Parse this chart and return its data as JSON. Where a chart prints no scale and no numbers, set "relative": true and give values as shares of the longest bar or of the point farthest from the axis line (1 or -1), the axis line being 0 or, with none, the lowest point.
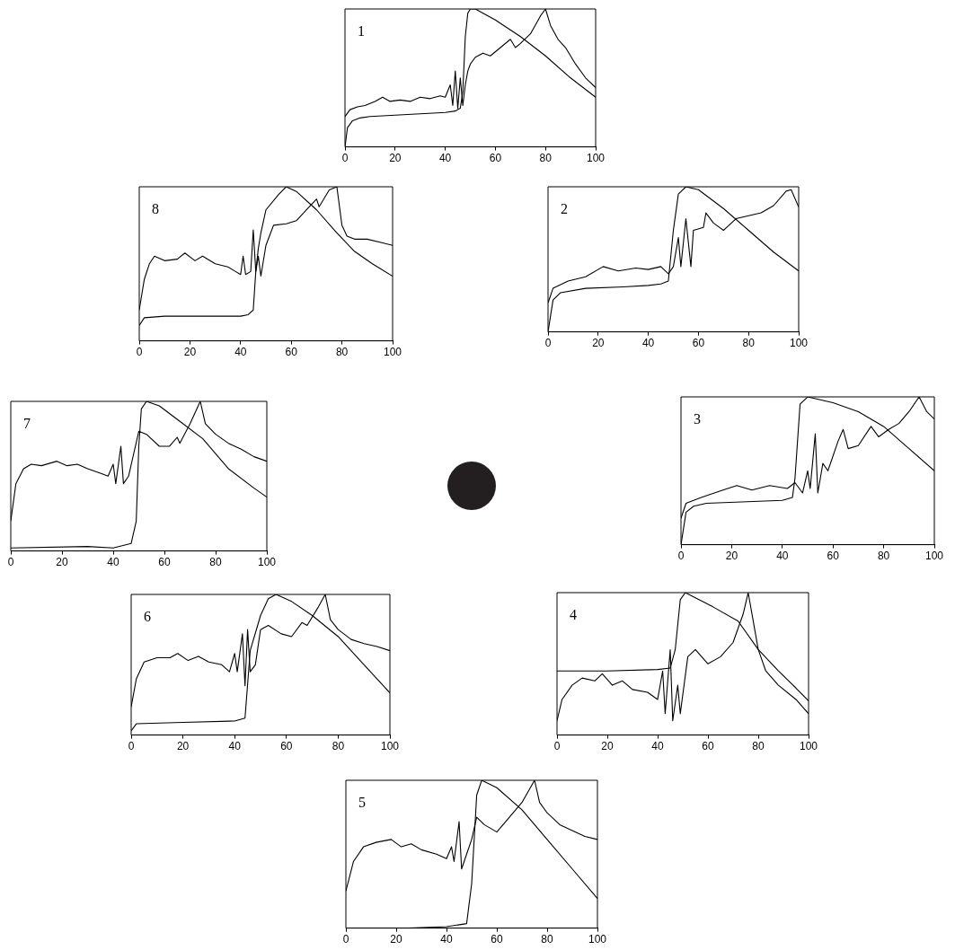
{
  "chart_data": [
    {
      "type": "line",
      "relative": true,
      "annotations": [
        "1"
      ],
      "xlim": [
        0,
        100
      ],
      "xticks": [
        0,
        20,
        40,
        60,
        80,
        100
      ],
      "series": [
        {
          "color": "#000000",
          "x": [
            0,
            1,
            3,
            6,
            10,
            20,
            30,
            40,
            44,
            46,
            47,
            48,
            49,
            50,
            52,
            60,
            70,
            80,
            90,
            100
          ],
          "values": [
            0,
            0.14,
            0.19,
            0.21,
            0.22,
            0.23,
            0.24,
            0.25,
            0.26,
            0.28,
            0.4,
            0.8,
            0.97,
            1,
            1,
            0.92,
            0.8,
            0.66,
            0.5,
            0.36
          ]
        },
        {
          "color": "#000000",
          "x": [
            0,
            2,
            5,
            8,
            12,
            15,
            18,
            22,
            26,
            30,
            34,
            38,
            40,
            42,
            43,
            44,
            45,
            46,
            47,
            48,
            49,
            50,
            52,
            55,
            58,
            62,
            66,
            68,
            70,
            74,
            78,
            80,
            82,
            85,
            88,
            92,
            96,
            100
          ],
          "values": [
            0.22,
            0.27,
            0.29,
            0.3,
            0.33,
            0.36,
            0.33,
            0.34,
            0.33,
            0.36,
            0.35,
            0.37,
            0.36,
            0.45,
            0.3,
            0.55,
            0.28,
            0.5,
            0.3,
            0.45,
            0.55,
            0.6,
            0.65,
            0.68,
            0.66,
            0.72,
            0.78,
            0.72,
            0.75,
            0.82,
            0.95,
            1,
            0.88,
            0.78,
            0.72,
            0.6,
            0.5,
            0.43
          ]
        }
      ]
    },
    {
      "type": "line",
      "relative": true,
      "annotations": [
        "8"
      ],
      "xlim": [
        0,
        100
      ],
      "xticks": [
        0,
        20,
        40,
        60,
        80,
        100
      ],
      "series": [
        {
          "color": "#000000",
          "x": [
            0,
            2,
            10,
            20,
            30,
            40,
            43,
            45,
            46,
            47,
            48,
            50,
            55,
            58,
            62,
            70,
            78,
            85,
            92,
            100
          ],
          "values": [
            0.1,
            0.15,
            0.16,
            0.16,
            0.16,
            0.16,
            0.17,
            0.2,
            0.45,
            0.6,
            0.7,
            0.85,
            0.95,
            1,
            0.97,
            0.85,
            0.7,
            0.58,
            0.5,
            0.42
          ]
        },
        {
          "color": "#000000",
          "x": [
            0,
            2,
            4,
            6,
            10,
            15,
            18,
            22,
            25,
            30,
            35,
            38,
            40,
            41,
            42,
            44,
            45,
            46,
            47,
            48,
            50,
            53,
            58,
            62,
            66,
            70,
            71,
            75,
            78,
            80,
            82,
            85,
            90,
            95,
            100
          ],
          "values": [
            0.2,
            0.4,
            0.5,
            0.55,
            0.52,
            0.53,
            0.57,
            0.52,
            0.55,
            0.5,
            0.48,
            0.45,
            0.43,
            0.55,
            0.43,
            0.45,
            0.72,
            0.45,
            0.55,
            0.42,
            0.62,
            0.75,
            0.76,
            0.78,
            0.85,
            0.92,
            0.87,
            0.98,
            1,
            0.75,
            0.68,
            0.66,
            0.66,
            0.64,
            0.62
          ]
        }
      ]
    },
    {
      "type": "line",
      "relative": true,
      "annotations": [
        "2"
      ],
      "xlim": [
        0,
        100
      ],
      "xticks": [
        0,
        20,
        40,
        60,
        80,
        100
      ],
      "series": [
        {
          "color": "#000000",
          "x": [
            0,
            2,
            5,
            15,
            30,
            40,
            45,
            48,
            50,
            52,
            55,
            60,
            70,
            80,
            90,
            100
          ],
          "values": [
            0,
            0.22,
            0.27,
            0.3,
            0.31,
            0.32,
            0.33,
            0.35,
            0.7,
            0.95,
            1,
            0.98,
            0.85,
            0.7,
            0.55,
            0.42
          ]
        },
        {
          "color": "#000000",
          "x": [
            0,
            2,
            8,
            15,
            22,
            28,
            35,
            40,
            45,
            48,
            50,
            52,
            53,
            55,
            57,
            58,
            62,
            63,
            66,
            70,
            75,
            80,
            85,
            90,
            95,
            97,
            100
          ],
          "values": [
            0.2,
            0.3,
            0.35,
            0.38,
            0.45,
            0.42,
            0.44,
            0.43,
            0.45,
            0.4,
            0.45,
            0.65,
            0.45,
            0.78,
            0.45,
            0.7,
            0.72,
            0.82,
            0.75,
            0.7,
            0.78,
            0.8,
            0.82,
            0.87,
            0.97,
            0.98,
            0.86
          ]
        }
      ]
    },
    {
      "type": "line",
      "relative": true,
      "annotations": [
        "7"
      ],
      "xlim": [
        0,
        100
      ],
      "xticks": [
        0,
        20,
        40,
        60,
        80,
        100
      ],
      "series": [
        {
          "color": "#000000",
          "x": [
            0,
            30,
            40,
            47,
            49,
            50,
            51,
            53,
            58,
            65,
            75,
            85,
            95,
            100
          ],
          "values": [
            0.02,
            0.03,
            0.02,
            0.05,
            0.2,
            0.7,
            0.95,
            1,
            0.97,
            0.88,
            0.75,
            0.55,
            0.42,
            0.36
          ]
        },
        {
          "color": "#000000",
          "x": [
            0,
            2,
            5,
            8,
            12,
            18,
            22,
            26,
            30,
            35,
            38,
            40,
            41,
            43,
            44,
            46,
            50,
            53,
            58,
            62,
            65,
            66,
            70,
            74,
            76,
            80,
            85,
            90,
            95,
            100
          ],
          "values": [
            0.2,
            0.45,
            0.55,
            0.58,
            0.57,
            0.6,
            0.57,
            0.58,
            0.55,
            0.52,
            0.5,
            0.58,
            0.45,
            0.7,
            0.45,
            0.5,
            0.8,
            0.78,
            0.7,
            0.7,
            0.76,
            0.72,
            0.85,
            1,
            0.85,
            0.78,
            0.72,
            0.68,
            0.63,
            0.6
          ]
        }
      ]
    },
    {
      "type": "line",
      "relative": true,
      "annotations": [
        "3"
      ],
      "xlim": [
        0,
        100
      ],
      "xticks": [
        0,
        20,
        40,
        60,
        80,
        100
      ],
      "series": [
        {
          "color": "#000000",
          "x": [
            0,
            2,
            5,
            10,
            40,
            44,
            45,
            47,
            50,
            60,
            70,
            80,
            90,
            100
          ],
          "values": [
            0,
            0.22,
            0.26,
            0.28,
            0.3,
            0.32,
            0.45,
            0.95,
            1,
            0.96,
            0.9,
            0.8,
            0.65,
            0.5
          ]
        },
        {
          "color": "#000000",
          "x": [
            0,
            2,
            8,
            15,
            22,
            28,
            35,
            42,
            45,
            48,
            50,
            51,
            53,
            54,
            56,
            58,
            62,
            64,
            66,
            70,
            75,
            78,
            82,
            86,
            90,
            94,
            97,
            100
          ],
          "values": [
            0.18,
            0.28,
            0.32,
            0.36,
            0.4,
            0.37,
            0.4,
            0.38,
            0.42,
            0.35,
            0.5,
            0.38,
            0.75,
            0.35,
            0.55,
            0.5,
            0.7,
            0.78,
            0.65,
            0.67,
            0.8,
            0.73,
            0.78,
            0.82,
            0.9,
            1,
            0.9,
            0.85
          ]
        }
      ]
    },
    {
      "type": "line",
      "relative": true,
      "annotations": [
        "6"
      ],
      "xlim": [
        0,
        100
      ],
      "xticks": [
        0,
        20,
        40,
        60,
        80,
        100
      ],
      "series": [
        {
          "color": "#000000",
          "x": [
            0,
            2,
            20,
            40,
            44,
            46,
            50,
            53,
            56,
            62,
            70,
            80,
            90,
            100
          ],
          "values": [
            0.03,
            0.08,
            0.09,
            0.1,
            0.12,
            0.6,
            0.85,
            0.97,
            1,
            0.95,
            0.85,
            0.7,
            0.5,
            0.3
          ]
        },
        {
          "color": "#000000",
          "x": [
            0,
            2,
            5,
            10,
            15,
            18,
            22,
            26,
            30,
            35,
            38,
            40,
            41,
            43,
            44,
            45,
            46,
            48,
            50,
            53,
            58,
            62,
            66,
            68,
            72,
            75,
            77,
            80,
            85,
            90,
            95,
            100
          ],
          "values": [
            0.2,
            0.4,
            0.52,
            0.55,
            0.55,
            0.58,
            0.53,
            0.56,
            0.52,
            0.5,
            0.45,
            0.58,
            0.45,
            0.72,
            0.35,
            0.75,
            0.45,
            0.5,
            0.75,
            0.78,
            0.72,
            0.7,
            0.8,
            0.78,
            0.9,
            1,
            0.82,
            0.75,
            0.68,
            0.65,
            0.63,
            0.6
          ]
        }
      ]
    },
    {
      "type": "line",
      "relative": true,
      "annotations": [
        "4"
      ],
      "xlim": [
        0,
        100
      ],
      "xticks": [
        0,
        20,
        40,
        60,
        80,
        100
      ],
      "series": [
        {
          "color": "#000000",
          "x": [
            0,
            20,
            40,
            45,
            47,
            49,
            51,
            62,
            72,
            80,
            88,
            95,
            100
          ],
          "values": [
            0.45,
            0.45,
            0.46,
            0.47,
            0.6,
            0.95,
            1,
            0.9,
            0.8,
            0.6,
            0.45,
            0.33,
            0.24
          ]
        },
        {
          "color": "#000000",
          "x": [
            0,
            2,
            6,
            10,
            15,
            18,
            22,
            26,
            30,
            36,
            40,
            42,
            43,
            45,
            46,
            48,
            49,
            52,
            55,
            60,
            65,
            70,
            74,
            76,
            78,
            80,
            83,
            88,
            95,
            100
          ],
          "values": [
            0.1,
            0.25,
            0.35,
            0.4,
            0.38,
            0.43,
            0.35,
            0.38,
            0.32,
            0.3,
            0.25,
            0.45,
            0.15,
            0.6,
            0.1,
            0.35,
            0.15,
            0.55,
            0.6,
            0.5,
            0.55,
            0.65,
            0.85,
            1,
            0.8,
            0.6,
            0.45,
            0.35,
            0.25,
            0.15
          ]
        }
      ]
    },
    {
      "type": "line",
      "relative": true,
      "annotations": [
        "5"
      ],
      "xlim": [
        0,
        100
      ],
      "xticks": [
        0,
        20,
        40,
        60,
        80,
        100
      ],
      "series": [
        {
          "color": "#000000",
          "x": [
            25,
            40,
            48,
            50,
            52,
            54,
            60,
            70,
            80,
            90,
            100
          ],
          "values": [
            0,
            0.01,
            0.03,
            0.3,
            0.9,
            1,
            0.95,
            0.8,
            0.6,
            0.4,
            0.2
          ]
        },
        {
          "color": "#000000",
          "x": [
            0,
            3,
            7,
            12,
            18,
            22,
            26,
            30,
            36,
            40,
            42,
            43,
            45,
            46,
            48,
            50,
            52,
            55,
            60,
            65,
            70,
            75,
            77,
            80,
            85,
            90,
            95,
            100
          ],
          "values": [
            0.25,
            0.45,
            0.55,
            0.58,
            0.6,
            0.55,
            0.57,
            0.53,
            0.5,
            0.47,
            0.55,
            0.45,
            0.72,
            0.4,
            0.5,
            0.6,
            0.75,
            0.7,
            0.65,
            0.75,
            0.85,
            1,
            0.85,
            0.78,
            0.7,
            0.66,
            0.62,
            0.6
          ]
        }
      ]
    }
  ]
}
